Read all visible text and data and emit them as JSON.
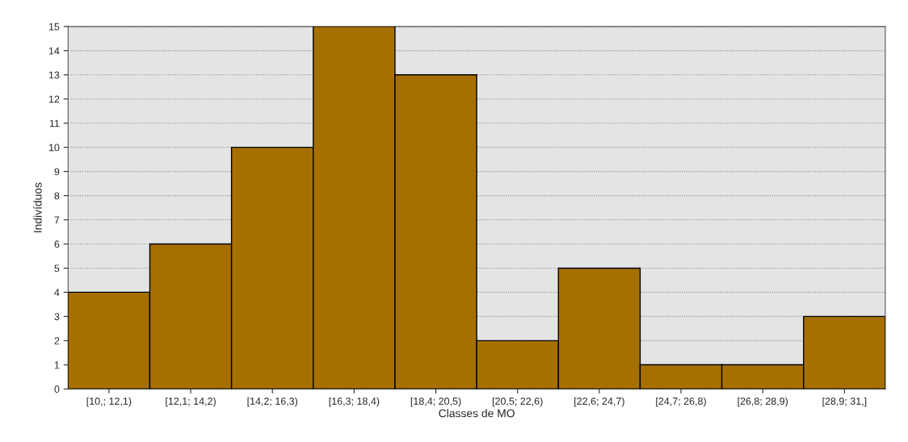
{
  "chart_data": {
    "type": "bar",
    "xlabel": "Classes de MO",
    "ylabel": "Indivíduos",
    "categories": [
      "[10,; 12,1)",
      "[12,1; 14,2)",
      "[14,2; 16,3)",
      "[16,3; 18,4)",
      "[18,4; 20,5)",
      "[20,5; 22,6)",
      "[22,6; 24,7)",
      "[24,7; 26,8)",
      "[26,8; 28,9)",
      "[28,9; 31,]"
    ],
    "values": [
      4,
      6,
      10,
      15,
      13,
      2,
      5,
      1,
      1,
      3
    ],
    "color": "#a67000",
    "ylim": [
      0,
      15
    ],
    "yticks": [
      0,
      1,
      2,
      3,
      4,
      5,
      6,
      7,
      8,
      9,
      10,
      11,
      12,
      13,
      14,
      15
    ],
    "grid": "y",
    "legend": false
  }
}
